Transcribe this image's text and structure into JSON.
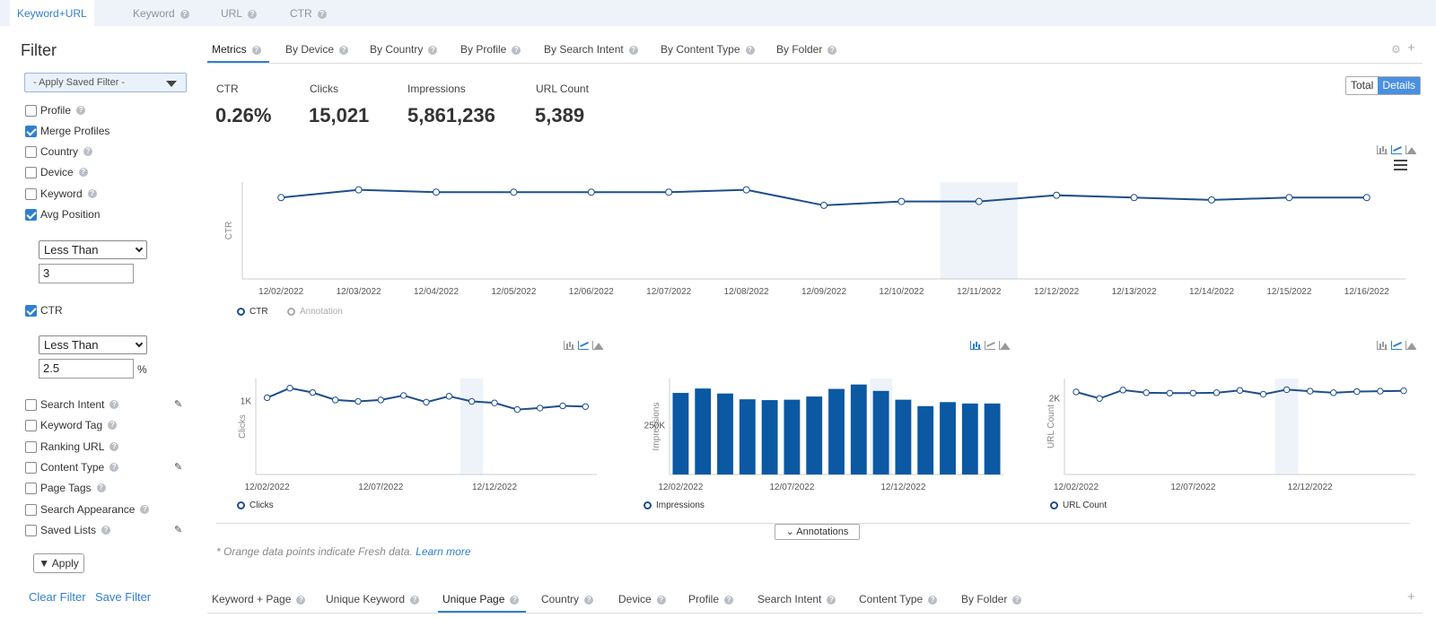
{
  "top_tabs": [
    {
      "label": "Keyword+URL",
      "active": true
    },
    {
      "label": "Keyword",
      "active": false
    },
    {
      "label": "URL",
      "active": false
    },
    {
      "label": "CTR",
      "active": false
    }
  ],
  "filter": {
    "title": "Filter",
    "saved_filter": "- Apply Saved Filter -",
    "items": {
      "profile": {
        "label": "Profile",
        "checked": false
      },
      "merge_profiles": {
        "label": "Merge Profiles",
        "checked": true
      },
      "country": {
        "label": "Country",
        "checked": false
      },
      "device": {
        "label": "Device",
        "checked": false
      },
      "keyword": {
        "label": "Keyword",
        "checked": false
      },
      "avg_position": {
        "label": "Avg Position",
        "checked": true
      },
      "ctr": {
        "label": "CTR",
        "checked": true
      },
      "search_intent": {
        "label": "Search Intent",
        "checked": false
      },
      "keyword_tag": {
        "label": "Keyword Tag",
        "checked": false
      },
      "ranking_url": {
        "label": "Ranking URL",
        "checked": false
      },
      "content_type": {
        "label": "Content Type",
        "checked": false
      },
      "page_tags": {
        "label": "Page Tags",
        "checked": false
      },
      "search_appearance": {
        "label": "Search Appearance",
        "checked": false
      },
      "saved_lists": {
        "label": "Saved Lists",
        "checked": false
      }
    },
    "avg_position_operator": "Less Than",
    "avg_position_value": "3",
    "ctr_operator": "Less Than",
    "ctr_value": "2.5",
    "ctr_unit": "%",
    "apply_label": "Apply",
    "clear_label": "Clear Filter",
    "save_label": "Save Filter"
  },
  "metric_tabs": [
    {
      "label": "Metrics",
      "active": true
    },
    {
      "label": "By Device",
      "active": false
    },
    {
      "label": "By Country",
      "active": false
    },
    {
      "label": "By Profile",
      "active": false
    },
    {
      "label": "By Search Intent",
      "active": false
    },
    {
      "label": "By Content Type",
      "active": false
    },
    {
      "label": "By Folder",
      "active": false
    }
  ],
  "metrics": [
    {
      "label": "CTR",
      "value": "0.26%"
    },
    {
      "label": "Clicks",
      "value": "15,021"
    },
    {
      "label": "Impressions",
      "value": "5,861,236"
    },
    {
      "label": "URL Count",
      "value": "5,389"
    }
  ],
  "view_toggle": {
    "total": "Total",
    "details": "Details",
    "selected": "Details"
  },
  "annotations_label": "Annotations",
  "note": {
    "text": "* Orange data points indicate Fresh data.",
    "link": "Learn more"
  },
  "bottom_tabs": [
    {
      "label": "Keyword + Page",
      "active": false
    },
    {
      "label": "Unique Keyword",
      "active": false
    },
    {
      "label": "Unique Page",
      "active": true
    },
    {
      "label": "Country",
      "active": false
    },
    {
      "label": "Device",
      "active": false
    },
    {
      "label": "Profile",
      "active": false
    },
    {
      "label": "Search Intent",
      "active": false
    },
    {
      "label": "Content Type",
      "active": false
    },
    {
      "label": "By Folder",
      "active": false
    }
  ],
  "icons": {
    "help": "question-icon",
    "settings": "gear-icon",
    "add": "plus-icon",
    "edit": "pencil-icon",
    "menu": "hamburger-icon",
    "filter": "funnel-icon"
  },
  "colors": {
    "accent": "#2f7fd1",
    "series": "#1f4e8c",
    "bar": "#0b58a3",
    "highlight": "#eef3f9"
  },
  "chart_data": [
    {
      "type": "line",
      "ylabel": "CTR",
      "x": [
        "12/02/2022",
        "12/03/2022",
        "12/04/2022",
        "12/05/2022",
        "12/06/2022",
        "12/07/2022",
        "12/08/2022",
        "12/09/2022",
        "12/10/2022",
        "12/11/2022",
        "12/12/2022",
        "12/13/2022",
        "12/14/2022",
        "12/15/2022",
        "12/16/2022"
      ],
      "series": [
        {
          "name": "CTR",
          "values": [
            0.255,
            0.265,
            0.262,
            0.262,
            0.262,
            0.262,
            0.265,
            0.245,
            0.25,
            0.25,
            0.258,
            0.255,
            0.252,
            0.255,
            0.255
          ]
        }
      ],
      "ylim": [
        0.15,
        0.275
      ],
      "legend": [
        "CTR",
        "Annotation"
      ],
      "highlight_x": "12/11/2022"
    },
    {
      "type": "line",
      "ylabel": "Clicks",
      "x_ticks": [
        "12/02/2022",
        "12/07/2022",
        "12/12/2022"
      ],
      "y_ticks": [
        {
          "value": 1000,
          "label": "1K"
        }
      ],
      "x": [
        "12/02/2022",
        "12/03/2022",
        "12/04/2022",
        "12/05/2022",
        "12/06/2022",
        "12/07/2022",
        "12/08/2022",
        "12/09/2022",
        "12/10/2022",
        "12/11/2022",
        "12/12/2022",
        "12/13/2022",
        "12/14/2022",
        "12/15/2022",
        "12/16/2022"
      ],
      "series": [
        {
          "name": "Clicks",
          "values": [
            1040,
            1170,
            1110,
            1010,
            990,
            1010,
            1070,
            980,
            1060,
            990,
            970,
            880,
            900,
            930,
            920
          ]
        }
      ],
      "ylim": [
        0,
        1300
      ],
      "highlight_x": "12/11/2022"
    },
    {
      "type": "bar",
      "ylabel": "Impressions",
      "x_ticks": [
        "12/02/2022",
        "12/07/2022",
        "12/12/2022"
      ],
      "y_ticks": [
        {
          "value": 250000,
          "label": "250K"
        }
      ],
      "x": [
        "12/02/2022",
        "12/03/2022",
        "12/04/2022",
        "12/05/2022",
        "12/06/2022",
        "12/07/2022",
        "12/08/2022",
        "12/09/2022",
        "12/10/2022",
        "12/11/2022",
        "12/12/2022",
        "12/13/2022",
        "12/14/2022",
        "12/15/2022",
        "12/16/2022"
      ],
      "series": [
        {
          "name": "Impressions",
          "values": [
            408000,
            430000,
            405000,
            376000,
            372000,
            374000,
            390000,
            428000,
            450000,
            418000,
            374000,
            342000,
            362000,
            355000,
            355000
          ]
        }
      ],
      "ylim": [
        0,
        480000
      ],
      "highlight_x": "12/11/2022"
    },
    {
      "type": "line",
      "ylabel": "URL Count",
      "x_ticks": [
        "12/02/2022",
        "12/07/2022",
        "12/12/2022"
      ],
      "y_ticks": [
        {
          "value": 2000,
          "label": "2K"
        }
      ],
      "x": [
        "12/02/2022",
        "12/03/2022",
        "12/04/2022",
        "12/05/2022",
        "12/06/2022",
        "12/07/2022",
        "12/08/2022",
        "12/09/2022",
        "12/10/2022",
        "12/11/2022",
        "12/12/2022",
        "12/13/2022",
        "12/14/2022",
        "12/15/2022",
        "12/16/2022"
      ],
      "series": [
        {
          "name": "URL Count",
          "values": [
            2150,
            1980,
            2200,
            2130,
            2120,
            2120,
            2130,
            2190,
            2090,
            2210,
            2170,
            2130,
            2160,
            2170,
            2180
          ]
        }
      ],
      "ylim": [
        0,
        2500
      ],
      "highlight_x": "12/11/2022"
    }
  ]
}
